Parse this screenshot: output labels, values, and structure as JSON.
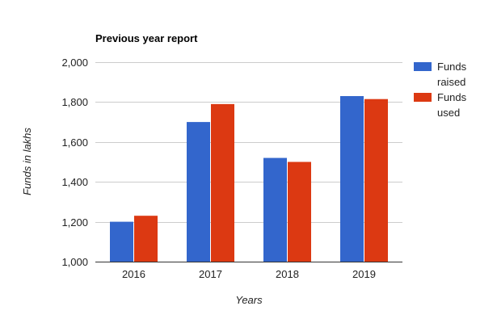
{
  "chart_data": {
    "type": "bar",
    "title": "Previous year report",
    "xlabel": "Years",
    "ylabel": "Funds in lakhs",
    "categories": [
      "2016",
      "2017",
      "2018",
      "2019"
    ],
    "series": [
      {
        "name": "Funds raised",
        "legend_lines": [
          "Funds",
          "raised"
        ],
        "color": "#3366cc",
        "values": [
          1200,
          1700,
          1520,
          1830
        ]
      },
      {
        "name": "Funds used",
        "legend_lines": [
          "Funds",
          "used"
        ],
        "color": "#dc3912",
        "values": [
          1230,
          1790,
          1500,
          1815
        ]
      }
    ],
    "ylim": [
      1000,
      2000
    ],
    "yticks": [
      1000,
      1200,
      1400,
      1600,
      1800,
      2000
    ],
    "ytick_labels": [
      "1,000",
      "1,200",
      "1,400",
      "1,600",
      "1,800",
      "2,000"
    ],
    "grid": true,
    "legend_position": "right"
  }
}
